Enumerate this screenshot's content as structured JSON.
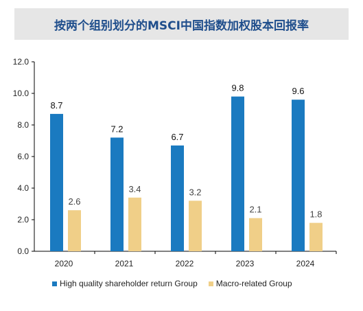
{
  "title": "按两个组别划分的MSCI中国指数加权股本回报率",
  "colors": {
    "series1": "#1a7ac0",
    "series2": "#f0cf88",
    "axis": "#000000"
  },
  "chart_data": {
    "type": "bar",
    "title": "按两个组别划分的MSCI中国指数加权股本回报率",
    "xlabel": "",
    "ylabel": "",
    "categories": [
      "2020",
      "2021",
      "2022",
      "2023",
      "2024"
    ],
    "ylim": [
      0,
      12
    ],
    "yticks": [
      "0.0",
      "2.0",
      "4.0",
      "6.0",
      "8.0",
      "10.0",
      "12.0"
    ],
    "grid": false,
    "legend_position": "bottom",
    "series": [
      {
        "name": "High quality shareholder return Group",
        "values": [
          8.7,
          7.2,
          6.7,
          9.8,
          9.6
        ],
        "labels": [
          "8.7",
          "7.2",
          "6.7",
          "9.8",
          "9.6"
        ]
      },
      {
        "name": "Macro-related Group",
        "values": [
          2.6,
          3.4,
          3.2,
          2.1,
          1.8
        ],
        "labels": [
          "2.6",
          "3.4",
          "3.2",
          "2.1",
          "1.8"
        ]
      }
    ]
  }
}
